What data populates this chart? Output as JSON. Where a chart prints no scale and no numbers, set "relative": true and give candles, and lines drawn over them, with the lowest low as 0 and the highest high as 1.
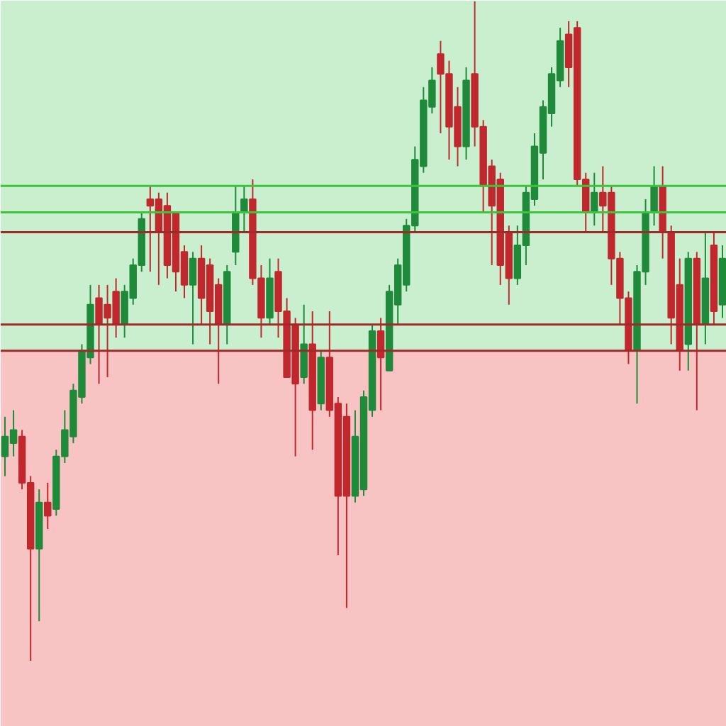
{
  "chart_data": {
    "type": "candlestick",
    "relative": true,
    "categories": [
      null,
      null,
      null,
      null,
      null,
      null,
      null,
      null,
      null,
      null,
      null,
      null,
      null,
      null,
      null,
      null,
      null,
      null,
      null,
      null,
      null,
      null,
      null,
      null,
      null,
      null,
      null,
      null,
      null,
      null,
      null,
      null,
      null,
      null,
      null,
      null,
      null,
      null,
      null,
      null,
      null,
      null,
      null,
      null,
      null,
      null,
      null,
      null,
      null,
      null,
      null,
      null,
      null,
      null,
      null,
      null,
      null,
      null,
      null,
      null,
      null,
      null,
      null,
      null,
      null,
      null,
      null,
      null,
      null,
      null,
      null,
      null,
      null,
      null,
      null,
      null,
      null,
      null,
      null,
      null,
      null,
      null,
      null,
      null,
      null
    ],
    "ohlc": [
      [
        0.31,
        0.37,
        0.28,
        0.34
      ],
      [
        0.33,
        0.38,
        0.31,
        0.35
      ],
      [
        0.34,
        0.35,
        0.26,
        0.27
      ],
      [
        0.27,
        0.28,
        0,
        0.17
      ],
      [
        0.17,
        0.26,
        0.06,
        0.24
      ],
      [
        0.24,
        0.27,
        0.2,
        0.22
      ],
      [
        0.23,
        0.32,
        0.22,
        0.31
      ],
      [
        0.31,
        0.38,
        0.3,
        0.35
      ],
      [
        0.34,
        0.42,
        0.33,
        0.41
      ],
      [
        0.4,
        0.48,
        0.39,
        0.47
      ],
      [
        0.46,
        0.57,
        0.45,
        0.54
      ],
      [
        0.55,
        0.57,
        0.42,
        0.51
      ],
      [
        0.54,
        0.57,
        0.43,
        0.52
      ],
      [
        0.56,
        0.58,
        0.49,
        0.51
      ],
      [
        0.51,
        0.57,
        0.49,
        0.56
      ],
      [
        0.55,
        0.61,
        0.54,
        0.6
      ],
      [
        0.6,
        0.68,
        0.59,
        0.67
      ],
      [
        0.7,
        0.72,
        0.59,
        0.69
      ],
      [
        0.7,
        0.71,
        0.57,
        0.65
      ],
      [
        0.69,
        0.71,
        0.58,
        0.6
      ],
      [
        0.68,
        0.68,
        0.56,
        0.59
      ],
      [
        0.62,
        0.63,
        0.55,
        0.57
      ],
      [
        0.57,
        0.62,
        0.48,
        0.61
      ],
      [
        0.61,
        0.63,
        0.51,
        0.55
      ],
      [
        0.6,
        0.61,
        0.48,
        0.53
      ],
      [
        0.57,
        0.58,
        0.42,
        0.51
      ],
      [
        0.51,
        0.6,
        0.48,
        0.59
      ],
      [
        0.62,
        0.72,
        0.6,
        0.68
      ],
      [
        0.68,
        0.72,
        0.65,
        0.7
      ],
      [
        0.7,
        0.73,
        0.57,
        0.58
      ],
      [
        0.58,
        0.6,
        0.49,
        0.52
      ],
      [
        0.52,
        0.61,
        0.51,
        0.58
      ],
      [
        0.59,
        0.61,
        0.49,
        0.53
      ],
      [
        0.53,
        0.55,
        0.43,
        0.43
      ],
      [
        0.51,
        0.52,
        0.31,
        0.42
      ],
      [
        0.43,
        0.54,
        0.42,
        0.48
      ],
      [
        0.48,
        0.53,
        0.32,
        0.38
      ],
      [
        0.39,
        0.47,
        0.38,
        0.46
      ],
      [
        0.46,
        0.53,
        0.37,
        0.38
      ],
      [
        0.39,
        0.4,
        0.16,
        0.25
      ],
      [
        0.37,
        0.39,
        0.08,
        0.25
      ],
      [
        0.25,
        0.38,
        0.24,
        0.34
      ],
      [
        0.26,
        0.41,
        0.25,
        0.4
      ],
      [
        0.38,
        0.51,
        0.37,
        0.5
      ],
      [
        0.5,
        0.52,
        0.38,
        0.46
      ],
      [
        0.44,
        0.57,
        0.44,
        0.56
      ],
      [
        0.54,
        0.61,
        0.51,
        0.6
      ],
      [
        0.57,
        0.67,
        0.56,
        0.66
      ],
      [
        0.66,
        0.78,
        0.65,
        0.76
      ],
      [
        0.75,
        0.87,
        0.74,
        0.85
      ],
      [
        0.84,
        0.9,
        0.83,
        0.88
      ],
      [
        0.92,
        0.94,
        0.8,
        0.89
      ],
      [
        0.89,
        0.91,
        0.76,
        0.81
      ],
      [
        0.84,
        0.87,
        0.75,
        0.78
      ],
      [
        0.78,
        0.9,
        0.76,
        0.88
      ],
      [
        0.89,
        1,
        0.78,
        0.81
      ],
      [
        0.81,
        0.82,
        0.68,
        0.72
      ],
      [
        0.75,
        0.76,
        0.6,
        0.69
      ],
      [
        0.73,
        0.74,
        0.57,
        0.6
      ],
      [
        0.65,
        0.66,
        0.54,
        0.58
      ],
      [
        0.58,
        0.66,
        0.57,
        0.63
      ],
      [
        0.63,
        0.72,
        0.6,
        0.71
      ],
      [
        0.7,
        0.8,
        0.69,
        0.78
      ],
      [
        0.77,
        0.85,
        0.73,
        0.84
      ],
      [
        0.83,
        0.9,
        0.81,
        0.89
      ],
      [
        0.88,
        0.96,
        0.87,
        0.94
      ],
      [
        0.95,
        0.97,
        0.87,
        0.9
      ],
      [
        0.96,
        0.97,
        0.72,
        0.73
      ],
      [
        0.73,
        0.74,
        0.65,
        0.68
      ],
      [
        0.68,
        0.74,
        0.66,
        0.71
      ],
      [
        0.71,
        0.75,
        0.65,
        0.69
      ],
      [
        0.71,
        0.72,
        0.57,
        0.61
      ],
      [
        0.61,
        0.62,
        0.51,
        0.55
      ],
      [
        0.55,
        0.56,
        0.45,
        0.47
      ],
      [
        0.47,
        0.6,
        0.39,
        0.59
      ],
      [
        0.59,
        0.7,
        0.57,
        0.68
      ],
      [
        0.68,
        0.75,
        0.66,
        0.72
      ],
      [
        0.72,
        0.75,
        0.61,
        0.65
      ],
      [
        0.65,
        0.66,
        0.48,
        0.52
      ],
      [
        0.57,
        0.61,
        0.44,
        0.47
      ],
      [
        0.48,
        0.62,
        0.44,
        0.61
      ],
      [
        0.61,
        0.62,
        0.38,
        0.51
      ],
      [
        0.51,
        0.65,
        0.48,
        0.58
      ],
      [
        0.63,
        0.65,
        0.51,
        0.53
      ],
      [
        0.54,
        0.63,
        0.52,
        0.61
      ]
    ],
    "colors": [
      "#1f8a3a",
      "#1f8a3a",
      "#c0282d",
      "#c0282d",
      "#1f8a3a",
      "#c0282d",
      "#1f8a3a",
      "#1f8a3a",
      "#1f8a3a",
      "#1f8a3a",
      "#1f8a3a",
      "#c0282d",
      "#c0282d",
      "#c0282d",
      "#1f8a3a",
      "#1f8a3a",
      "#1f8a3a",
      "#c0282d",
      "#c0282d",
      "#c0282d",
      "#c0282d",
      "#c0282d",
      "#1f8a3a",
      "#c0282d",
      "#c0282d",
      "#c0282d",
      "#1f8a3a",
      "#1f8a3a",
      "#1f8a3a",
      "#c0282d",
      "#c0282d",
      "#1f8a3a",
      "#c0282d",
      "#c0282d",
      "#c0282d",
      "#1f8a3a",
      "#c0282d",
      "#1f8a3a",
      "#c0282d",
      "#c0282d",
      "#c0282d",
      "#1f8a3a",
      "#1f8a3a",
      "#1f8a3a",
      "#c0282d",
      "#1f8a3a",
      "#1f8a3a",
      "#1f8a3a",
      "#1f8a3a",
      "#1f8a3a",
      "#1f8a3a",
      "#c0282d",
      "#c0282d",
      "#c0282d",
      "#1f8a3a",
      "#c0282d",
      "#c0282d",
      "#c0282d",
      "#c0282d",
      "#c0282d",
      "#1f8a3a",
      "#1f8a3a",
      "#1f8a3a",
      "#1f8a3a",
      "#1f8a3a",
      "#1f8a3a",
      "#c0282d",
      "#c0282d",
      "#c0282d",
      "#1f8a3a",
      "#c0282d",
      "#c0282d",
      "#c0282d",
      "#c0282d",
      "#1f8a3a",
      "#1f8a3a",
      "#1f8a3a",
      "#c0282d",
      "#c0282d",
      "#c0282d",
      "#1f8a3a",
      "#c0282d",
      "#1f8a3a",
      "#c0282d",
      "#1f8a3a"
    ],
    "bands": [
      {
        "axis": "y",
        "from": 0.47,
        "to": 1,
        "color": "#c9efce"
      },
      {
        "axis": "y",
        "from": 0,
        "to": 0.47,
        "color": "#f7c3c3"
      }
    ],
    "ref_lines": [
      {
        "axis": "y",
        "value": 0.72,
        "color": "#3cc43c"
      },
      {
        "axis": "y",
        "value": 0.68,
        "color": "#3cc43c"
      },
      {
        "axis": "y",
        "value": 0.65,
        "color": "#9e2a2a"
      },
      {
        "axis": "y",
        "value": 0.51,
        "color": "#9e2a2a"
      },
      {
        "axis": "y",
        "value": 0.47,
        "color": "#9e2a2a"
      }
    ]
  }
}
